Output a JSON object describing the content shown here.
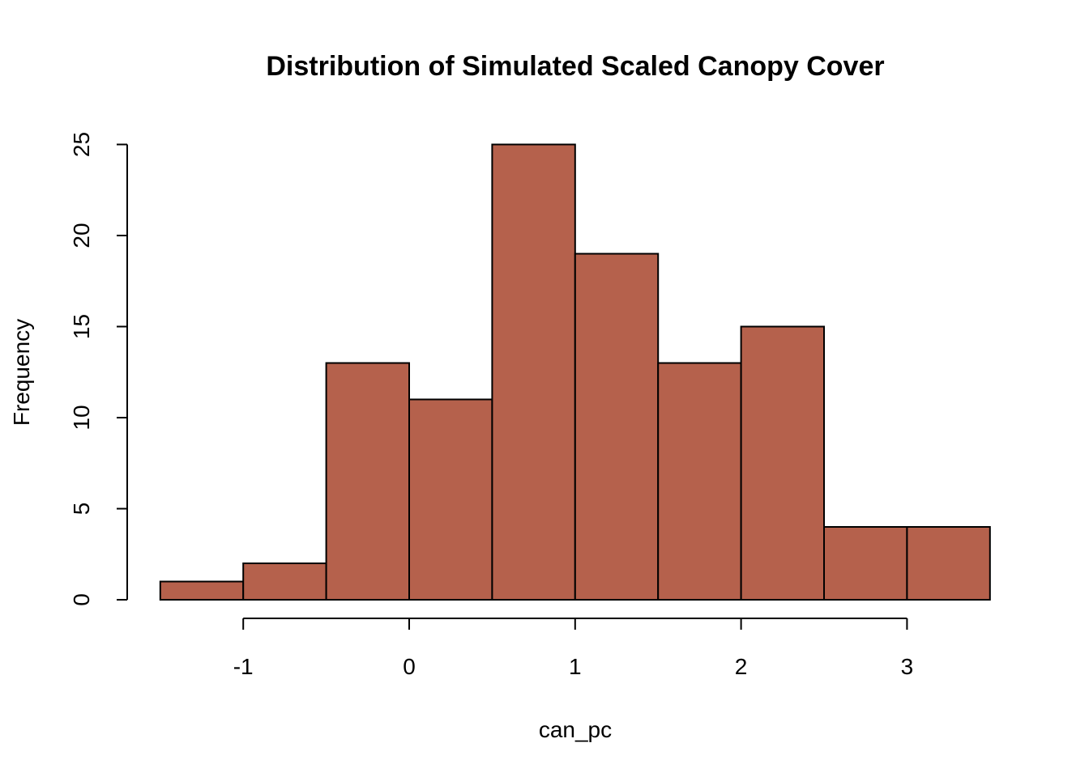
{
  "chart_data": {
    "type": "bar",
    "title": "Distribution of Simulated Scaled Canopy Cover",
    "xlabel": "can_pc",
    "ylabel": "Frequency",
    "bin_edges": [
      -1.5,
      -1.0,
      -0.5,
      0.0,
      0.5,
      1.0,
      1.5,
      2.0,
      2.5,
      3.0,
      3.5
    ],
    "values": [
      1,
      2,
      13,
      11,
      25,
      19,
      13,
      15,
      4,
      4
    ],
    "x_ticks": [
      -1,
      0,
      1,
      2,
      3
    ],
    "x_tick_labels": [
      "-1",
      "0",
      "1",
      "2",
      "3"
    ],
    "y_ticks": [
      0,
      5,
      10,
      15,
      20,
      25
    ],
    "y_tick_labels": [
      "0",
      "5",
      "10",
      "15",
      "20",
      "25"
    ],
    "xlim": [
      -1.5,
      3.5
    ],
    "ylim": [
      0,
      25
    ],
    "bar_color": "#b5614c",
    "grid": false
  }
}
